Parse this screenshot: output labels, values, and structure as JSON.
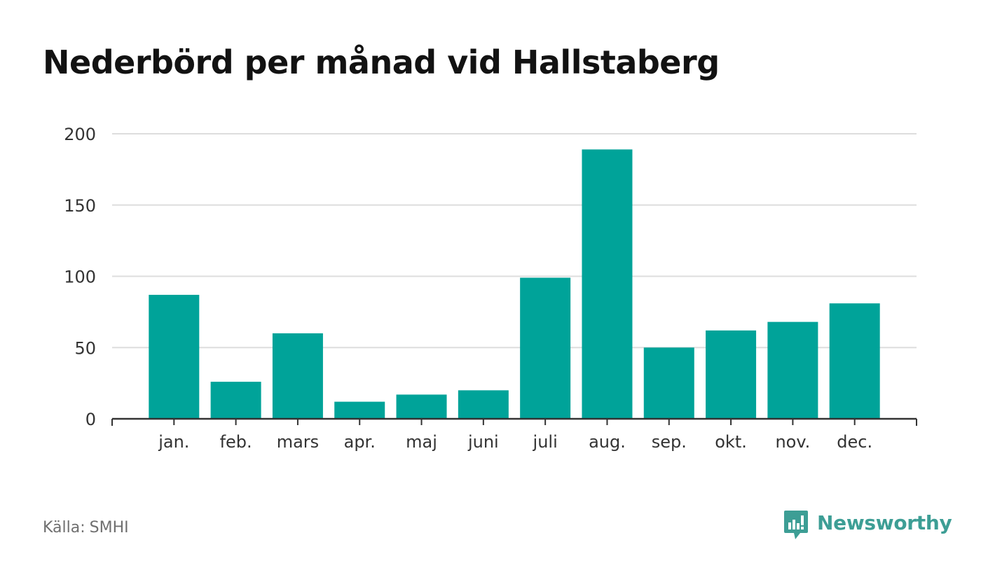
{
  "chart_data": {
    "type": "bar",
    "title": "Nederbörd per månad vid Hallstaberg",
    "categories": [
      "jan.",
      "feb.",
      "mars",
      "apr.",
      "maj",
      "juni",
      "juli",
      "aug.",
      "sep.",
      "okt.",
      "nov.",
      "dec."
    ],
    "values": [
      87,
      26,
      60,
      12,
      17,
      20,
      99,
      189,
      50,
      62,
      68,
      81
    ],
    "xlabel": "",
    "ylabel": "",
    "ylim": [
      0,
      200
    ],
    "yticks": [
      0,
      50,
      100,
      150,
      200
    ],
    "ytick_labels": [
      "0",
      "50",
      "100",
      "150",
      "200"
    ],
    "grid": true,
    "legend": "none",
    "bar_color": "#00a399",
    "grid_color": "#dddddd",
    "axis_color": "#333333"
  },
  "footer": {
    "source_label": "Källa:",
    "source_value": "SMHI"
  },
  "brand": {
    "name": "Newsworthy",
    "icon": "newsworthy-logo-icon",
    "color": "#3d9e95"
  }
}
